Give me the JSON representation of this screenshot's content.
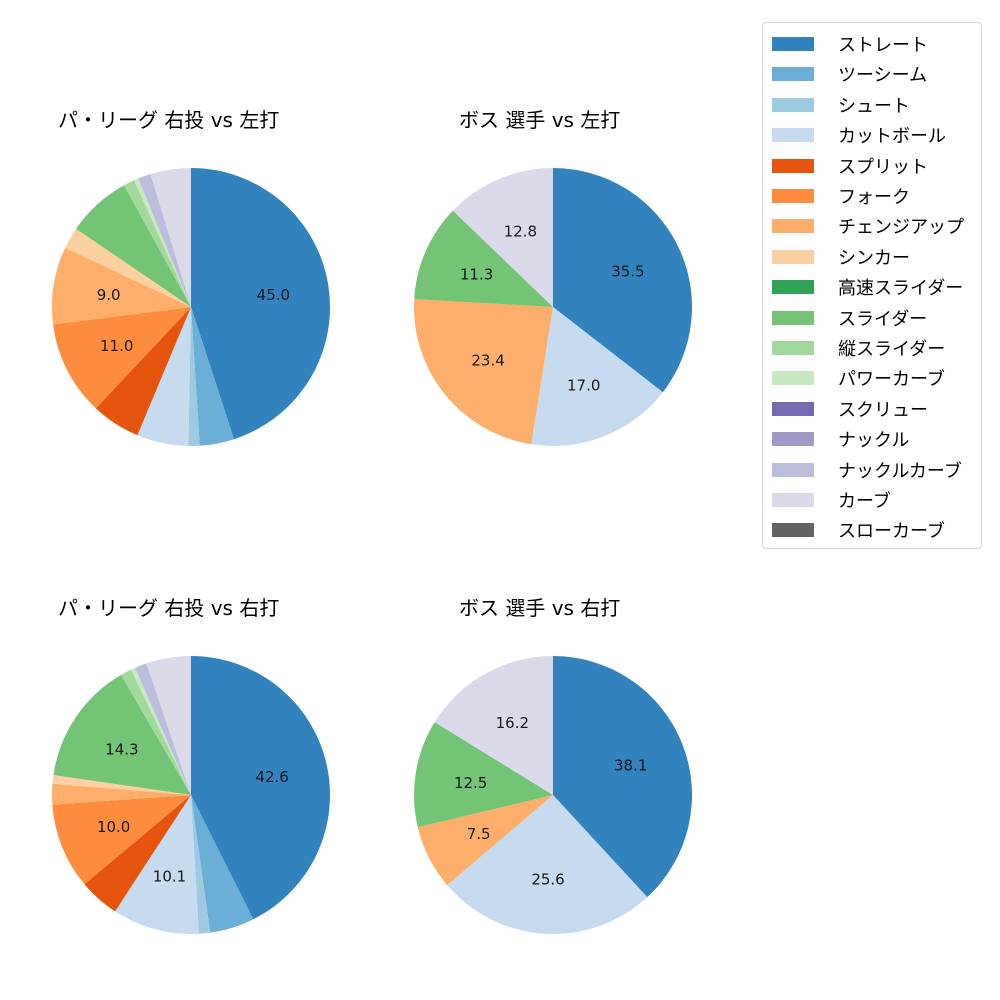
{
  "chart_data": [
    {
      "type": "pie",
      "title": "パ・リーグ 右投 vs 左打",
      "start_angle": "12 o'clock, clockwise",
      "categories": [
        "ストレート",
        "ツーシーム",
        "シュート",
        "カットボール",
        "スプリット",
        "フォーク",
        "チェンジアップ",
        "シンカー",
        "スライダー",
        "縦スライダー",
        "パワーカーブ",
        "ナックルカーブ",
        "カーブ"
      ],
      "values": [
        45.0,
        4.0,
        1.3,
        6.0,
        5.7,
        11.0,
        9.0,
        2.5,
        7.5,
        1.3,
        0.5,
        1.5,
        4.7
      ],
      "labels_shown": [
        "45.0",
        "",
        "",
        "",
        "",
        "11.0",
        "9.0",
        "",
        "",
        "",
        "",
        "",
        ""
      ]
    },
    {
      "type": "pie",
      "title": "ボス 選手 vs 左打",
      "start_angle": "12 o'clock, clockwise",
      "categories": [
        "ストレート",
        "カットボール",
        "チェンジアップ",
        "スライダー",
        "カーブ"
      ],
      "values": [
        35.5,
        17.0,
        23.4,
        11.3,
        12.8
      ],
      "labels_shown": [
        "35.5",
        "17.0",
        "23.4",
        "11.3",
        "12.8"
      ]
    },
    {
      "type": "pie",
      "title": "パ・リーグ 右投 vs 右打",
      "start_angle": "12 o'clock, clockwise",
      "categories": [
        "ストレート",
        "ツーシーム",
        "シュート",
        "カットボール",
        "スプリット",
        "フォーク",
        "チェンジアップ",
        "シンカー",
        "スライダー",
        "縦スライダー",
        "パワーカーブ",
        "ナックルカーブ",
        "カーブ"
      ],
      "values": [
        42.6,
        5.2,
        1.3,
        10.1,
        4.7,
        10.0,
        2.4,
        1.0,
        14.3,
        1.3,
        0.5,
        1.4,
        5.2
      ],
      "labels_shown": [
        "42.6",
        "",
        "",
        "10.1",
        "",
        "10.0",
        "",
        "",
        "14.3",
        "",
        "",
        "",
        ""
      ]
    },
    {
      "type": "pie",
      "title": "ボス 選手 vs 右打",
      "start_angle": "12 o'clock, clockwise",
      "categories": [
        "ストレート",
        "カットボール",
        "チェンジアップ",
        "スライダー",
        "カーブ"
      ],
      "values": [
        38.1,
        25.6,
        7.5,
        12.5,
        16.2
      ],
      "labels_shown": [
        "38.1",
        "25.6",
        "7.5",
        "12.5",
        "16.2"
      ]
    }
  ],
  "colors": {
    "ストレート": "#3182bd",
    "ツーシーム": "#6baed6",
    "シュート": "#9ecae1",
    "カットボール": "#c6dbef",
    "スプリット": "#e6550d",
    "フォーク": "#fd8d3c",
    "チェンジアップ": "#fdae6b",
    "シンカー": "#fdd0a2",
    "高速スライダー": "#31a354",
    "スライダー": "#74c476",
    "縦スライダー": "#a1d99b",
    "パワーカーブ": "#c7e9c0",
    "スクリュー": "#756bb1",
    "ナックル": "#9e9ac8",
    "ナックルカーブ": "#bcbddc",
    "カーブ": "#dadaeb",
    "スローカーブ": "#636363"
  },
  "legend": {
    "items": [
      {
        "label": "ストレート",
        "color": "#3182bd"
      },
      {
        "label": "ツーシーム",
        "color": "#6baed6"
      },
      {
        "label": "シュート",
        "color": "#9ecae1"
      },
      {
        "label": "カットボール",
        "color": "#c6dbef"
      },
      {
        "label": "スプリット",
        "color": "#e6550d"
      },
      {
        "label": "フォーク",
        "color": "#fd8d3c"
      },
      {
        "label": "チェンジアップ",
        "color": "#fdae6b"
      },
      {
        "label": "シンカー",
        "color": "#fdd0a2"
      },
      {
        "label": "高速スライダー",
        "color": "#31a354"
      },
      {
        "label": "スライダー",
        "color": "#74c476"
      },
      {
        "label": "縦スライダー",
        "color": "#a1d99b"
      },
      {
        "label": "パワーカーブ",
        "color": "#c7e9c0"
      },
      {
        "label": "スクリュー",
        "color": "#756bb1"
      },
      {
        "label": "ナックル",
        "color": "#9e9ac8"
      },
      {
        "label": "ナックルカーブ",
        "color": "#bcbddc"
      },
      {
        "label": "カーブ",
        "color": "#dadaeb"
      },
      {
        "label": "スローカーブ",
        "color": "#636363"
      }
    ]
  }
}
